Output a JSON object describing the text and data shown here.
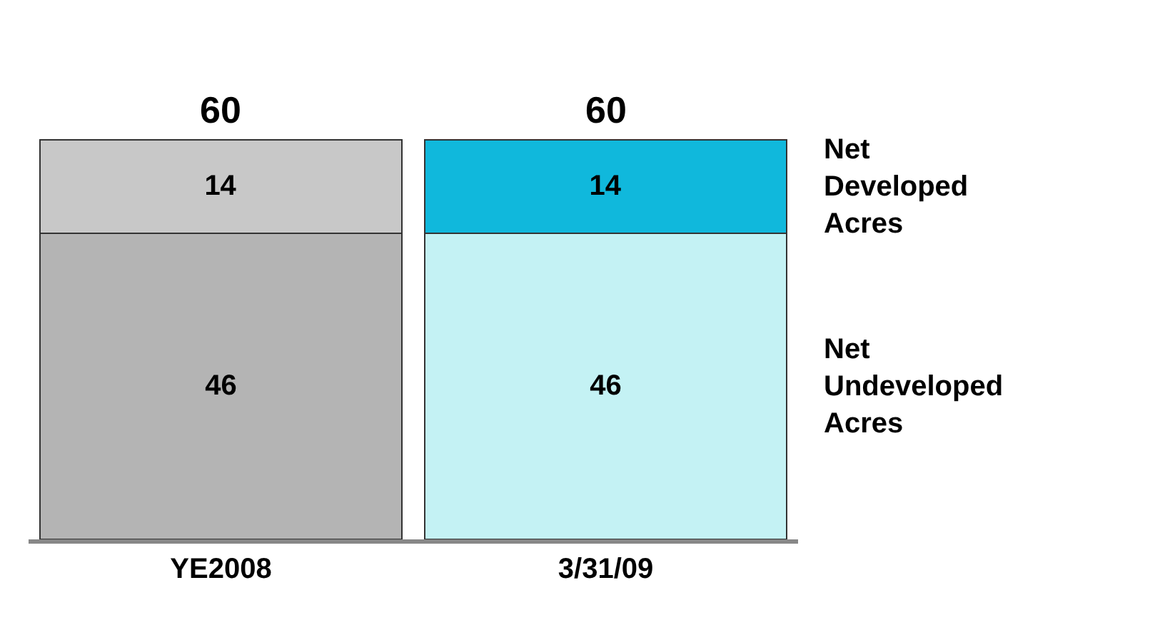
{
  "chart_data": {
    "type": "bar",
    "stacked": true,
    "categories": [
      "YE2008",
      "3/31/09"
    ],
    "series": [
      {
        "name": "Net Undeveloped Acres",
        "colors": [
          "#b4b4b4",
          "#c4f2f4"
        ],
        "values": [
          46,
          46
        ]
      },
      {
        "name": "Net Developed Acres",
        "colors": [
          "#c8c8c8",
          "#10b8dc"
        ],
        "values": [
          14,
          14
        ]
      }
    ],
    "data_labels": true,
    "totals": [
      "60",
      "60"
    ]
  }
}
